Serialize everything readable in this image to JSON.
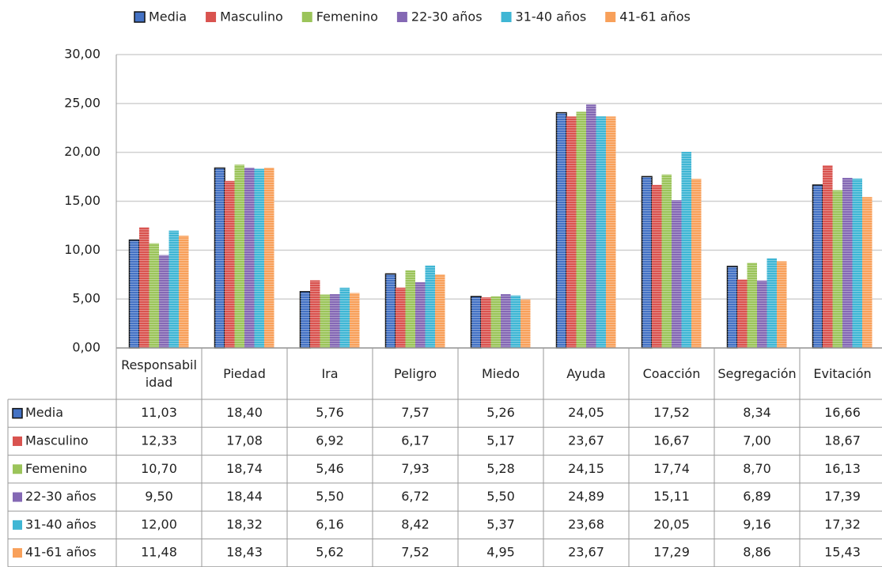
{
  "chart_data": {
    "type": "bar",
    "categories": [
      "Responsabilidad",
      "Piedad",
      "Ira",
      "Peligro",
      "Miedo",
      "Ayuda",
      "Coacción",
      "Segregación",
      "Evitación"
    ],
    "series": [
      {
        "name": "Media",
        "color": "#4472c4",
        "values": [
          11.03,
          18.4,
          5.76,
          7.57,
          5.26,
          24.05,
          17.52,
          8.34,
          16.66
        ],
        "value_labels": [
          "11,03",
          "18,40",
          "5,76",
          "7,57",
          "5,26",
          "24,05",
          "17,52",
          "8,34",
          "16,66"
        ]
      },
      {
        "name": "Masculino",
        "color": "#d9534f",
        "values": [
          12.33,
          17.08,
          6.92,
          6.17,
          5.17,
          23.67,
          16.67,
          7.0,
          18.67
        ],
        "value_labels": [
          "12,33",
          "17,08",
          "6,92",
          "6,17",
          "5,17",
          "23,67",
          "16,67",
          "7,00",
          "18,67"
        ]
      },
      {
        "name": "Femenino",
        "color": "#9bc45a",
        "values": [
          10.7,
          18.74,
          5.46,
          7.93,
          5.28,
          24.15,
          17.74,
          8.7,
          16.13
        ],
        "value_labels": [
          "10,70",
          "18,74",
          "5,46",
          "7,93",
          "5,28",
          "24,15",
          "17,74",
          "8,70",
          "16,13"
        ]
      },
      {
        "name": "22-30 años",
        "color": "#8468b4",
        "values": [
          9.5,
          18.44,
          5.5,
          6.72,
          5.5,
          24.89,
          15.11,
          6.89,
          17.39
        ],
        "value_labels": [
          "9,50",
          "18,44",
          "5,50",
          "6,72",
          "5,50",
          "24,89",
          "15,11",
          "6,89",
          "17,39"
        ]
      },
      {
        "name": "31-40 años",
        "color": "#3fb6d4",
        "values": [
          12.0,
          18.32,
          6.16,
          8.42,
          5.37,
          23.68,
          20.05,
          9.16,
          17.32
        ],
        "value_labels": [
          "12,00",
          "18,32",
          "6,16",
          "8,42",
          "5,37",
          "23,68",
          "20,05",
          "9,16",
          "17,32"
        ]
      },
      {
        "name": "41-61 años",
        "color": "#f8a05a",
        "values": [
          11.48,
          18.43,
          5.62,
          7.52,
          4.95,
          23.67,
          17.29,
          8.86,
          15.43
        ],
        "value_labels": [
          "11,48",
          "18,43",
          "5,62",
          "7,52",
          "4,95",
          "23,67",
          "17,29",
          "8,86",
          "15,43"
        ]
      }
    ],
    "ylim": [
      0,
      30
    ],
    "yticks": [
      {
        "value": 0,
        "label": "0,00"
      },
      {
        "value": 5,
        "label": "5,00"
      },
      {
        "value": 10,
        "label": "10,00"
      },
      {
        "value": 15,
        "label": "15,00"
      },
      {
        "value": 20,
        "label": "20,00"
      },
      {
        "value": 25,
        "label": "25,00"
      },
      {
        "value": 30,
        "label": "30,00"
      }
    ],
    "grid": true,
    "legend": "top"
  }
}
